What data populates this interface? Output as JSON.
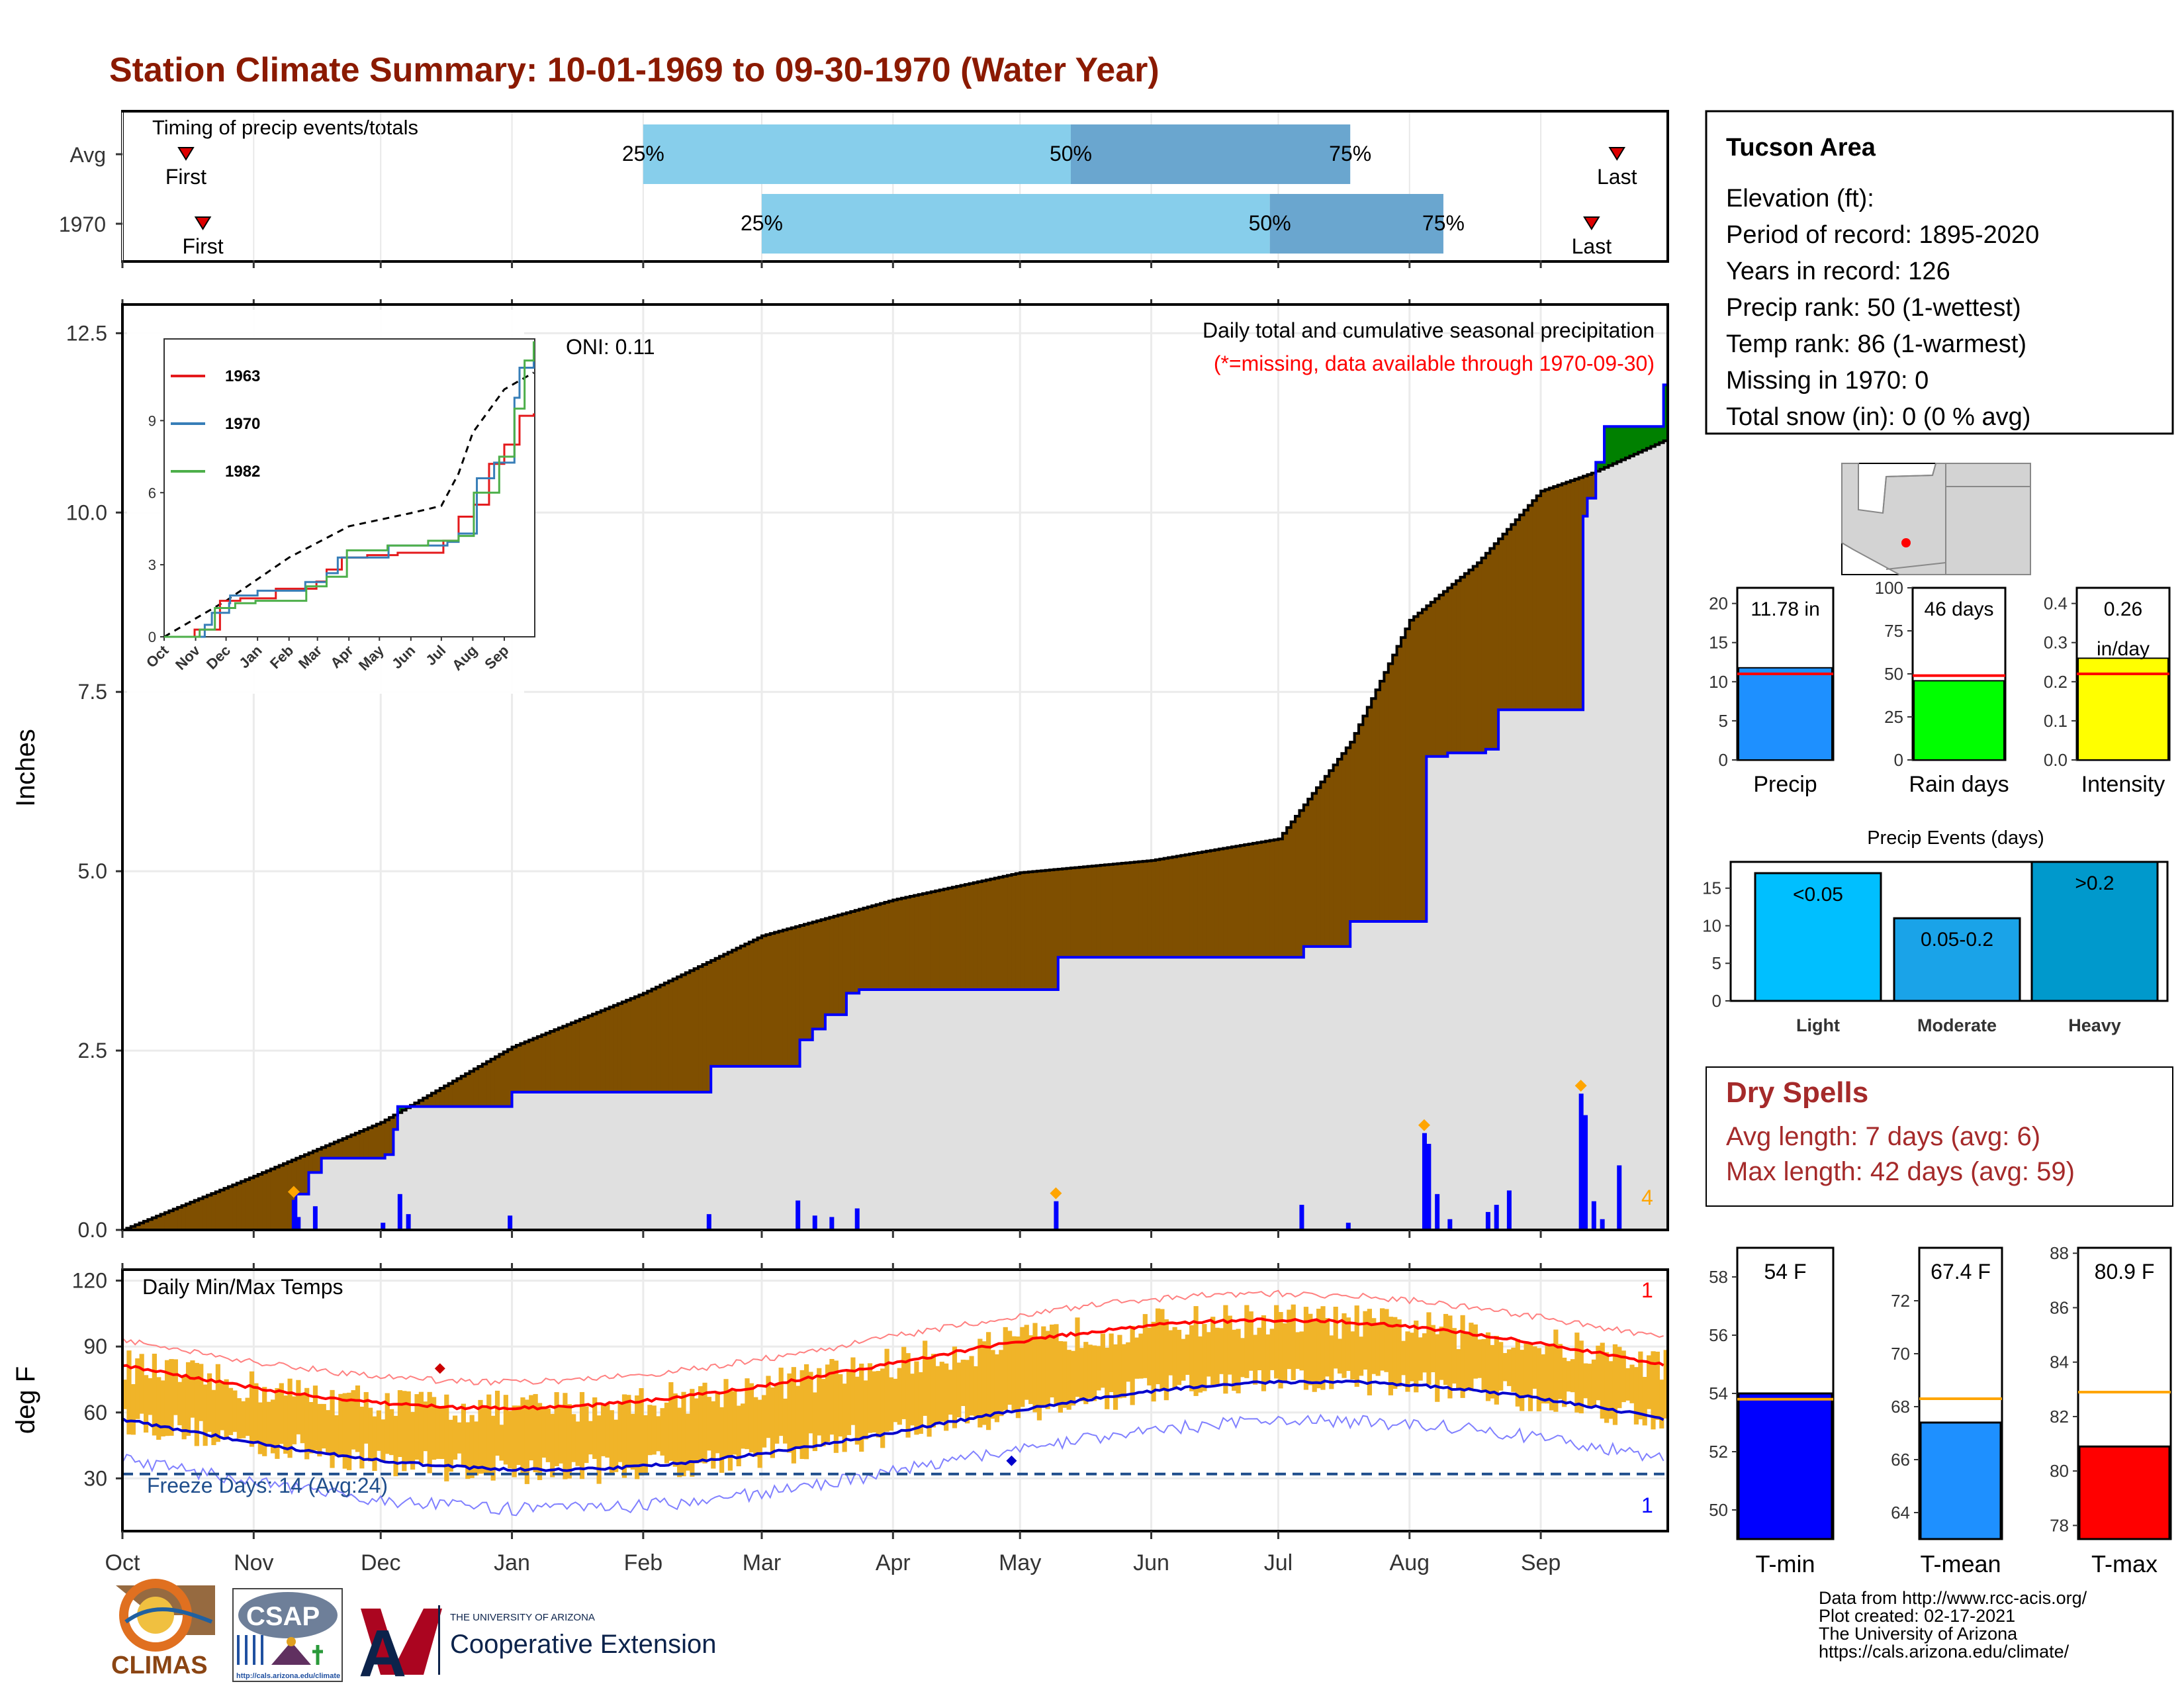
{
  "title": "Station Climate Summary: 10-01-1969 to 09-30-1970 (Water Year)",
  "months": [
    "Oct",
    "Nov",
    "Dec",
    "Jan",
    "Feb",
    "Mar",
    "Apr",
    "May",
    "Jun",
    "Jul",
    "Aug",
    "Sep"
  ],
  "colors": {
    "title": "#8b1a00",
    "avg_bar": "#87ceeb",
    "avg_bar_mid": "#6aa6cf",
    "brown": "#7f4f00",
    "green": "#008000",
    "blue": "#0000ff",
    "grey": "#e0e0e0",
    "temp_bar": "#f0b429",
    "orange": "#ffa500",
    "red": "#ff0000",
    "dry": "#a52a2a",
    "freeze": "#1f4e8c"
  },
  "timing": {
    "label": "Timing of precip events/totals",
    "rows": [
      {
        "name": "Avg",
        "first_day": 15,
        "p25_day": 123,
        "p50_day": 224,
        "p75_day": 290,
        "last_day": 353,
        "first_label": "First",
        "last_label": "Last"
      },
      {
        "name": "1970",
        "first_day": 19,
        "p25_day": 151,
        "p50_day": 271,
        "p75_day": 312,
        "last_day": 347,
        "first_label": "First",
        "last_label": "Last"
      }
    ],
    "pct_labels": [
      "25%",
      "50%",
      "75%"
    ]
  },
  "precip": {
    "ylabel": "Inches",
    "yticks": [
      "0.0",
      "2.5",
      "5.0",
      "7.5",
      "10.0",
      "12.5"
    ],
    "caption1": "Daily total and cumulative seasonal precipitation",
    "caption2": "(*=missing, data available through 1970-09-30)",
    "oni": "ONI: 0.11",
    "count_label": "4",
    "avg_cum": [
      [
        0,
        0
      ],
      [
        31,
        0.75
      ],
      [
        61,
        1.5
      ],
      [
        92,
        2.55
      ],
      [
        123,
        3.3
      ],
      [
        151,
        4.1
      ],
      [
        182,
        4.6
      ],
      [
        212,
        4.98
      ],
      [
        243,
        5.15
      ],
      [
        273,
        5.45
      ],
      [
        290,
        6.8
      ],
      [
        304,
        8.5
      ],
      [
        320,
        9.3
      ],
      [
        335,
        10.3
      ],
      [
        347,
        10.55
      ],
      [
        364,
        11.0
      ]
    ],
    "cum_1970": [
      [
        0,
        0
      ],
      [
        40,
        0
      ],
      [
        41,
        0.5
      ],
      [
        44,
        0.8
      ],
      [
        47,
        1.0
      ],
      [
        62,
        1.05
      ],
      [
        64,
        1.4
      ],
      [
        65,
        1.72
      ],
      [
        91,
        1.72
      ],
      [
        92,
        1.92
      ],
      [
        138,
        1.92
      ],
      [
        139,
        2.28
      ],
      [
        159,
        2.28
      ],
      [
        160,
        2.65
      ],
      [
        163,
        2.8
      ],
      [
        166,
        3.0
      ],
      [
        171,
        3.3
      ],
      [
        174,
        3.35
      ],
      [
        220,
        3.35
      ],
      [
        221,
        3.8
      ],
      [
        278,
        3.8
      ],
      [
        279,
        3.95
      ],
      [
        289,
        3.95
      ],
      [
        290,
        4.3
      ],
      [
        307,
        4.3
      ],
      [
        308,
        6.6
      ],
      [
        313,
        6.65
      ],
      [
        322,
        6.7
      ],
      [
        325,
        7.25
      ],
      [
        344,
        7.25
      ],
      [
        345,
        9.95
      ],
      [
        346,
        10.2
      ],
      [
        348,
        10.7
      ],
      [
        350,
        11.2
      ],
      [
        364,
        11.78
      ]
    ],
    "daily": [
      [
        40,
        0.42
      ],
      [
        41,
        0.18
      ],
      [
        45,
        0.33
      ],
      [
        61,
        0.1
      ],
      [
        65,
        0.5
      ],
      [
        67,
        0.22
      ],
      [
        91,
        0.2
      ],
      [
        138,
        0.22
      ],
      [
        159,
        0.41
      ],
      [
        163,
        0.2
      ],
      [
        167,
        0.18
      ],
      [
        173,
        0.3
      ],
      [
        220,
        0.4
      ],
      [
        278,
        0.35
      ],
      [
        289,
        0.1
      ],
      [
        307,
        1.35
      ],
      [
        308,
        1.2
      ],
      [
        310,
        0.5
      ],
      [
        313,
        0.15
      ],
      [
        322,
        0.25
      ],
      [
        324,
        0.35
      ],
      [
        327,
        0.55
      ],
      [
        344,
        1.9
      ],
      [
        345,
        1.6
      ],
      [
        347,
        0.4
      ],
      [
        349,
        0.15
      ],
      [
        353,
        0.9
      ]
    ],
    "max_markers": [
      40,
      220,
      307,
      344
    ],
    "inset": {
      "yticks": [
        "0",
        "3",
        "6",
        "9"
      ],
      "series": [
        {
          "name": "1963",
          "color": "#e41a1c",
          "points": [
            [
              0,
              0
            ],
            [
              30,
              0.3
            ],
            [
              55,
              1.5
            ],
            [
              75,
              1.6
            ],
            [
              95,
              1.6
            ],
            [
              110,
              2.0
            ],
            [
              125,
              2.0
            ],
            [
              140,
              2.0
            ],
            [
              150,
              2.3
            ],
            [
              160,
              2.8
            ],
            [
              175,
              3.3
            ],
            [
              200,
              3.4
            ],
            [
              230,
              3.5
            ],
            [
              260,
              3.5
            ],
            [
              275,
              4.0
            ],
            [
              290,
              5.0
            ],
            [
              305,
              5.5
            ],
            [
              320,
              7.2
            ],
            [
              335,
              8.0
            ],
            [
              350,
              9.2
            ],
            [
              364,
              9.3
            ]
          ]
        },
        {
          "name": "1970",
          "color": "#377eb8",
          "points": [
            [
              0,
              0
            ],
            [
              40,
              0.5
            ],
            [
              47,
              1.0
            ],
            [
              64,
              1.4
            ],
            [
              65,
              1.72
            ],
            [
              92,
              1.92
            ],
            [
              139,
              2.28
            ],
            [
              160,
              2.65
            ],
            [
              171,
              3.3
            ],
            [
              221,
              3.8
            ],
            [
              279,
              3.95
            ],
            [
              290,
              4.3
            ],
            [
              308,
              6.6
            ],
            [
              325,
              7.25
            ],
            [
              345,
              9.95
            ],
            [
              350,
              11.2
            ],
            [
              364,
              11.78
            ]
          ]
        },
        {
          "name": "1982",
          "color": "#4daf4a",
          "points": [
            [
              0,
              0
            ],
            [
              35,
              0.3
            ],
            [
              50,
              1.2
            ],
            [
              70,
              1.4
            ],
            [
              90,
              1.5
            ],
            [
              120,
              1.5
            ],
            [
              140,
              2.1
            ],
            [
              160,
              2.5
            ],
            [
              180,
              3.6
            ],
            [
              220,
              3.8
            ],
            [
              260,
              4.0
            ],
            [
              290,
              4.2
            ],
            [
              305,
              6.0
            ],
            [
              330,
              7.5
            ],
            [
              345,
              9.5
            ],
            [
              355,
              11.5
            ],
            [
              364,
              12.3
            ]
          ]
        }
      ],
      "avg": [
        [
          0,
          0
        ],
        [
          61,
          1.5
        ],
        [
          123,
          3.3
        ],
        [
          182,
          4.6
        ],
        [
          243,
          5.15
        ],
        [
          273,
          5.45
        ],
        [
          290,
          6.8
        ],
        [
          304,
          8.5
        ],
        [
          335,
          10.3
        ],
        [
          364,
          11.0
        ]
      ]
    }
  },
  "temps": {
    "ylabel": "deg F",
    "label": "Daily Min/Max Temps",
    "yticks": [
      "30",
      "60",
      "90",
      "120"
    ],
    "freeze": "Freeze Days: 14 (Avg:24)",
    "count_top": "1",
    "count_bottom": "1"
  },
  "info": {
    "station": "Tucson Area",
    "lines": [
      "Elevation (ft):",
      "Period of record: 1895-2020",
      "Years in record: 126",
      "Precip rank: 50 (1-wettest)",
      "Temp rank: 86 (1-warmest)",
      "Missing in 1970: 0",
      "Total snow (in): 0 (0 % avg)"
    ]
  },
  "mini_bars": [
    {
      "label": "Precip",
      "value_label": "11.78 in",
      "value": 11.78,
      "avg": 11.0,
      "max": 22,
      "ticks": [
        "0",
        "5",
        "10",
        "15",
        "20"
      ],
      "tickvals": [
        0,
        5,
        10,
        15,
        20
      ],
      "color": "#1e90ff"
    },
    {
      "label": "Rain days",
      "value_label": "46 days",
      "value": 46,
      "avg": 49,
      "max": 100,
      "ticks": [
        "0",
        "25",
        "50",
        "75",
        "100"
      ],
      "tickvals": [
        0,
        25,
        50,
        75,
        100
      ],
      "color": "#00ff00"
    },
    {
      "label": "Intensity",
      "value_label": "0.26",
      "value_label2": "in/day",
      "value": 0.26,
      "avg": 0.22,
      "max": 0.44,
      "ticks": [
        "0.0",
        "0.1",
        "0.2",
        "0.3",
        "0.4"
      ],
      "tickvals": [
        0,
        0.1,
        0.2,
        0.3,
        0.4
      ],
      "color": "#ffff00"
    }
  ],
  "events": {
    "title": "Precip Events (days)",
    "ticks": [
      "0",
      "5",
      "10",
      "15"
    ],
    "tickvals": [
      0,
      5,
      10,
      15
    ],
    "max": 18.5,
    "bars": [
      {
        "label": "Light",
        "range": "<0.05",
        "value": 17,
        "color": "#00bfff"
      },
      {
        "label": "Moderate",
        "range": "0.05-0.2",
        "value": 11,
        "color": "#1aa3e8"
      },
      {
        "label": "Heavy",
        "range": ">0.2",
        "value": 18.5,
        "color": "#0099cc"
      }
    ]
  },
  "dry": {
    "title": "Dry Spells",
    "avg": "Avg length: 7 days (avg: 6)",
    "max": "Max length: 42 days (avg: 59)"
  },
  "temp_bars": [
    {
      "label": "T-min",
      "value_label": "54 F",
      "value": 54,
      "avg": 53.8,
      "min": 49,
      "max": 59,
      "ticks": [
        "50",
        "52",
        "54",
        "56",
        "58"
      ],
      "tickvals": [
        50,
        52,
        54,
        56,
        58
      ],
      "color": "#0000ff"
    },
    {
      "label": "T-mean",
      "value_label": "67.4 F",
      "value": 67.4,
      "avg": 68.3,
      "min": 63,
      "max": 74,
      "ticks": [
        "64",
        "66",
        "68",
        "70",
        "72"
      ],
      "tickvals": [
        64,
        66,
        68,
        70,
        72
      ],
      "color": "#1e90ff"
    },
    {
      "label": "T-max",
      "value_label": "80.9 F",
      "value": 80.9,
      "avg": 82.9,
      "min": 77.5,
      "max": 88.2,
      "ticks": [
        "78",
        "80",
        "82",
        "84",
        "86",
        "88"
      ],
      "tickvals": [
        78,
        80,
        82,
        84,
        86,
        88
      ],
      "color": "#ff0000"
    }
  ],
  "footer": [
    "Data from http://www.rcc-acis.org/",
    "Plot created: 02-17-2021",
    "The University of Arizona",
    "https://cals.arizona.edu/climate/"
  ],
  "logos": {
    "climas": "CLIMAS",
    "csap": "CSAP",
    "csap_url": "http://cals.arizona.edu/climate",
    "ua_small": "THE UNIVERSITY OF ARIZONA",
    "ua_big": "Cooperative Extension"
  }
}
